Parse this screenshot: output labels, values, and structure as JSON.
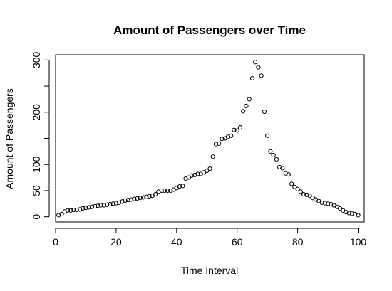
{
  "chart_data": {
    "type": "scatter",
    "title": "Amount of Passengers over Time",
    "xlabel": "Time Interval",
    "ylabel": "Amount of Passengers",
    "xlim": [
      0,
      102
    ],
    "ylim": [
      -10,
      310
    ],
    "xticks": [
      0,
      20,
      40,
      60,
      80,
      100
    ],
    "yticks": [
      0,
      50,
      100,
      150,
      200,
      250,
      300
    ],
    "ytick_labels": [
      "0",
      "50",
      "100",
      "",
      "200",
      "",
      "300"
    ],
    "grid": false,
    "point_style": "open-circle",
    "x": [
      1,
      2,
      3,
      4,
      5,
      6,
      7,
      8,
      9,
      10,
      11,
      12,
      13,
      14,
      15,
      16,
      17,
      18,
      19,
      20,
      21,
      22,
      23,
      24,
      25,
      26,
      27,
      28,
      29,
      30,
      31,
      32,
      33,
      34,
      35,
      36,
      37,
      38,
      39,
      40,
      41,
      42,
      43,
      44,
      45,
      46,
      47,
      48,
      49,
      50,
      51,
      52,
      53,
      54,
      55,
      56,
      57,
      58,
      59,
      60,
      61,
      62,
      63,
      64,
      65,
      66,
      67,
      68,
      69,
      70,
      71,
      72,
      73,
      74,
      75,
      76,
      77,
      78,
      79,
      80,
      81,
      82,
      83,
      84,
      85,
      86,
      87,
      88,
      89,
      90,
      91,
      92,
      93,
      94,
      95,
      96,
      97,
      98,
      99,
      100
    ],
    "y": [
      3,
      5,
      10,
      12,
      12,
      13,
      13,
      14,
      16,
      17,
      18,
      19,
      20,
      21,
      22,
      22,
      23,
      24,
      25,
      26,
      27,
      29,
      31,
      32,
      33,
      34,
      35,
      36,
      37,
      38,
      39,
      40,
      43,
      48,
      50,
      50,
      50,
      50,
      52,
      55,
      58,
      59,
      73,
      75,
      79,
      80,
      82,
      82,
      85,
      88,
      92,
      115,
      139,
      140,
      149,
      150,
      153,
      155,
      166,
      165,
      171,
      202,
      212,
      225,
      265,
      296,
      286,
      270,
      201,
      155,
      125,
      118,
      110,
      95,
      93,
      83,
      81,
      63,
      57,
      53,
      48,
      43,
      42,
      40,
      36,
      33,
      30,
      27,
      26,
      25,
      24,
      22,
      19,
      16,
      12,
      9,
      7,
      6,
      5,
      3
    ]
  }
}
